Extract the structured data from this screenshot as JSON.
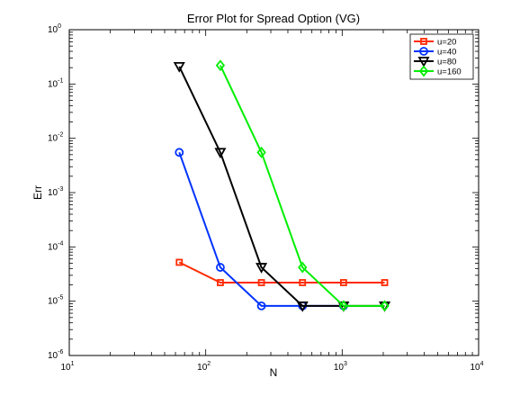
{
  "chart_data": {
    "type": "line",
    "title": "Error Plot for Spread Option (VG)",
    "xlabel": "N",
    "ylabel": "Err",
    "x_scale": "log",
    "y_scale": "log",
    "xlim": [
      10,
      10000
    ],
    "ylim": [
      1e-06,
      1
    ],
    "grid": false,
    "legend_position": "top-right",
    "x_ticks": [
      {
        "value": 10,
        "base": "10",
        "exp": "1"
      },
      {
        "value": 100,
        "base": "10",
        "exp": "2"
      },
      {
        "value": 1000,
        "base": "10",
        "exp": "3"
      },
      {
        "value": 10000,
        "base": "10",
        "exp": "4"
      }
    ],
    "y_ticks": [
      {
        "value": 1,
        "base": "10",
        "exp": "0"
      },
      {
        "value": 0.1,
        "base": "10",
        "exp": "-1"
      },
      {
        "value": 0.01,
        "base": "10",
        "exp": "-2"
      },
      {
        "value": 0.001,
        "base": "10",
        "exp": "-3"
      },
      {
        "value": 0.0001,
        "base": "10",
        "exp": "-4"
      },
      {
        "value": 1e-05,
        "base": "10",
        "exp": "-5"
      },
      {
        "value": 1e-06,
        "base": "10",
        "exp": "-6"
      }
    ],
    "series": [
      {
        "name": "u=20",
        "color": "#ff2a00",
        "marker": "square",
        "x": [
          64,
          128,
          256,
          512,
          1024,
          2048
        ],
        "y": [
          5.2e-05,
          2.2e-05,
          2.2e-05,
          2.2e-05,
          2.2e-05,
          2.2e-05
        ]
      },
      {
        "name": "u=40",
        "color": "#0033ff",
        "marker": "circle",
        "x": [
          64,
          128,
          256,
          512,
          1024
        ],
        "y": [
          0.0055,
          4.2e-05,
          8.2e-06,
          8.2e-06,
          8.2e-06
        ]
      },
      {
        "name": "u=80",
        "color": "#000000",
        "marker": "triangle-down",
        "x": [
          64,
          128,
          256,
          512,
          1024,
          2048
        ],
        "y": [
          0.21,
          0.0055,
          4.2e-05,
          8.2e-06,
          8.2e-06,
          8.2e-06
        ]
      },
      {
        "name": "u=160",
        "color": "#00ee00",
        "marker": "diamond",
        "x": [
          128,
          256,
          512,
          1024,
          2048
        ],
        "y": [
          0.22,
          0.0055,
          4.2e-05,
          8.2e-06,
          8.2e-06
        ]
      }
    ]
  }
}
